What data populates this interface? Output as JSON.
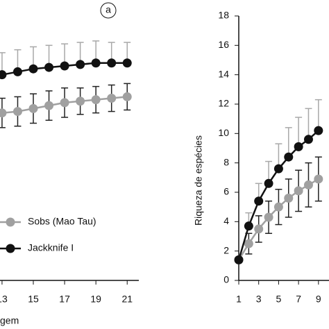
{
  "chart_data": [
    {
      "type": "line",
      "annotation": "a",
      "x_label": "gem",
      "legend": "lower left",
      "x": [
        13,
        14,
        15,
        16,
        17,
        18,
        19,
        20,
        21
      ],
      "xlim": [
        12.87,
        21.3
      ],
      "xticks": [
        13,
        15,
        17,
        19,
        21
      ],
      "ylim": [
        0,
        18
      ],
      "series": [
        {
          "name": "Sobs (Mao Tau)",
          "color": "#a0a0a0",
          "error_color": "#222222",
          "error_side": "both",
          "values": [
            11.4,
            11.5,
            11.7,
            11.9,
            12.1,
            12.2,
            12.3,
            12.4,
            12.5
          ],
          "errors": [
            1.0,
            1.0,
            1.0,
            1.0,
            1.0,
            0.9,
            0.9,
            0.9,
            0.9
          ]
        },
        {
          "name": "Jackknife I",
          "color": "#111111",
          "error_color": "#a8a8a8",
          "error_side": "up",
          "values": [
            14.0,
            14.2,
            14.4,
            14.5,
            14.6,
            14.7,
            14.8,
            14.8,
            14.8
          ],
          "errors": [
            1.5,
            1.5,
            1.5,
            1.5,
            1.5,
            1.5,
            1.5,
            1.4,
            1.4
          ]
        }
      ]
    },
    {
      "type": "line",
      "y_label": "Riqueza de espécies",
      "x": [
        1,
        2,
        3,
        4,
        5,
        6,
        7,
        8,
        9
      ],
      "xlim": [
        1,
        9.5
      ],
      "xticks": [
        1,
        3,
        5,
        7,
        9
      ],
      "ylim": [
        0,
        18
      ],
      "yticks": [
        0,
        2,
        4,
        6,
        8,
        10,
        12,
        14,
        16,
        18
      ],
      "series": [
        {
          "color": "#a0a0a0",
          "error_color": "#222222",
          "error_side": "both",
          "values": [
            1.4,
            2.5,
            3.5,
            4.3,
            5.0,
            5.6,
            6.1,
            6.5,
            6.9
          ],
          "errors": [
            0,
            0.7,
            0.9,
            1.1,
            1.2,
            1.3,
            1.4,
            1.5,
            1.5
          ]
        },
        {
          "color": "#111111",
          "error_color": "#a8a8a8",
          "error_side": "up",
          "values": [
            1.4,
            3.7,
            5.4,
            6.6,
            7.6,
            8.4,
            9.1,
            9.6,
            10.2
          ],
          "errors": [
            0,
            0.9,
            1.2,
            1.5,
            1.7,
            2.0,
            2.0,
            2.1,
            2.1
          ]
        }
      ]
    }
  ]
}
